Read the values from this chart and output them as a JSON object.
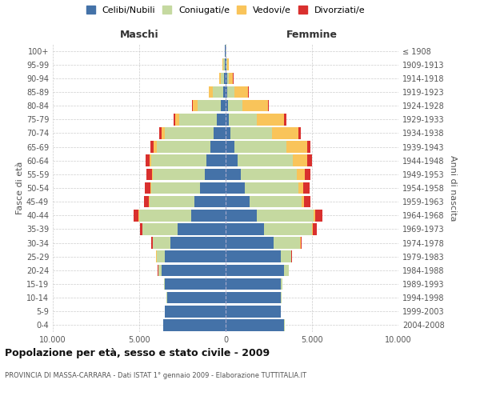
{
  "age_groups": [
    "0-4",
    "5-9",
    "10-14",
    "15-19",
    "20-24",
    "25-29",
    "30-34",
    "35-39",
    "40-44",
    "45-49",
    "50-54",
    "55-59",
    "60-64",
    "65-69",
    "70-74",
    "75-79",
    "80-84",
    "85-89",
    "90-94",
    "95-99",
    "100+"
  ],
  "birth_years": [
    "2004-2008",
    "1999-2003",
    "1994-1998",
    "1989-1993",
    "1984-1988",
    "1979-1983",
    "1974-1978",
    "1969-1973",
    "1964-1968",
    "1959-1963",
    "1954-1958",
    "1949-1953",
    "1944-1948",
    "1939-1943",
    "1934-1938",
    "1929-1933",
    "1924-1928",
    "1919-1923",
    "1914-1918",
    "1909-1913",
    "≤ 1908"
  ],
  "maschi": {
    "celibi": [
      3600,
      3500,
      3400,
      3500,
      3700,
      3500,
      3200,
      2800,
      2000,
      1800,
      1500,
      1200,
      1100,
      900,
      700,
      500,
      300,
      150,
      100,
      60,
      30
    ],
    "coniugati": [
      5,
      10,
      20,
      60,
      200,
      500,
      1000,
      2000,
      3000,
      2600,
      2800,
      3000,
      3200,
      3100,
      2800,
      2200,
      1300,
      600,
      180,
      80,
      20
    ],
    "vedovi": [
      0,
      1,
      1,
      2,
      5,
      5,
      10,
      20,
      30,
      40,
      60,
      80,
      100,
      150,
      200,
      200,
      300,
      200,
      80,
      30,
      5
    ],
    "divorziati": [
      0,
      1,
      2,
      5,
      15,
      30,
      80,
      150,
      300,
      280,
      300,
      300,
      250,
      200,
      150,
      100,
      60,
      30,
      20,
      10,
      2
    ]
  },
  "femmine": {
    "nubili": [
      3400,
      3200,
      3200,
      3200,
      3400,
      3200,
      2800,
      2200,
      1800,
      1400,
      1100,
      900,
      700,
      500,
      300,
      200,
      150,
      100,
      80,
      50,
      20
    ],
    "coniugate": [
      3,
      8,
      20,
      80,
      250,
      600,
      1500,
      2800,
      3300,
      3000,
      3100,
      3200,
      3200,
      3000,
      2400,
      1600,
      800,
      400,
      100,
      50,
      10
    ],
    "vedove": [
      0,
      1,
      2,
      3,
      8,
      15,
      30,
      60,
      100,
      150,
      300,
      500,
      800,
      1200,
      1500,
      1600,
      1500,
      800,
      250,
      80,
      10
    ],
    "divorziate": [
      0,
      1,
      2,
      5,
      15,
      30,
      80,
      200,
      400,
      350,
      350,
      300,
      280,
      200,
      150,
      100,
      50,
      20,
      10,
      5,
      1
    ]
  },
  "colors": {
    "celibi": "#4472a8",
    "coniugati": "#c5d9a0",
    "vedovi": "#f9c45a",
    "divorziati": "#d9302e"
  },
  "xlim": 10000,
  "title": "Popolazione per età, sesso e stato civile - 2009",
  "subtitle": "PROVINCIA DI MASSA-CARRARA - Dati ISTAT 1° gennaio 2009 - Elaborazione TUTTITALIA.IT",
  "ylabel_left": "Fasce di età",
  "ylabel_right": "Anni di nascita",
  "xlabel_left": "Maschi",
  "xlabel_right": "Femmine",
  "legend_labels": [
    "Celibi/Nubili",
    "Coniugati/e",
    "Vedovi/e",
    "Divorziati/e"
  ]
}
